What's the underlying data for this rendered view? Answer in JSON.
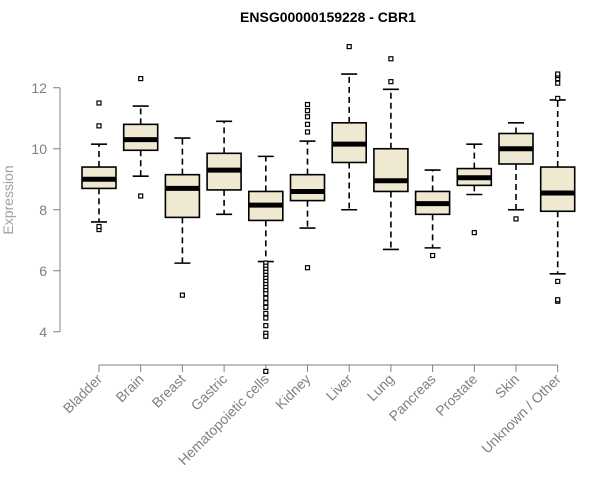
{
  "chart_data": {
    "type": "boxplot",
    "title": "ENSG00000159228 - CBR1",
    "xlabel": "",
    "ylabel": "Expression",
    "ylim": [
      3.5,
      13.5
    ],
    "yticks": [
      4,
      6,
      8,
      10,
      12
    ],
    "grid": false,
    "legend": "none",
    "box_fill": "#efe9d2",
    "box_stroke": "#000000",
    "axis_color": "#808080",
    "categories": [
      "Bladder",
      "Brain",
      "Breast",
      "Gastric",
      "Hematopoietic cells",
      "Kidney",
      "Liver",
      "Lung",
      "Pancreas",
      "Prostate",
      "Skin",
      "Unknown / Other"
    ],
    "boxes": [
      {
        "category": "Bladder",
        "whisker_low": 7.6,
        "q1": 8.7,
        "median": 9.0,
        "q3": 9.4,
        "whisker_high": 10.15,
        "outliers": [
          7.35,
          7.45,
          10.75,
          11.5
        ]
      },
      {
        "category": "Brain",
        "whisker_low": 9.1,
        "q1": 9.95,
        "median": 10.3,
        "q3": 10.8,
        "whisker_high": 11.4,
        "outliers": [
          8.45,
          12.3
        ]
      },
      {
        "category": "Breast",
        "whisker_low": 6.25,
        "q1": 7.75,
        "median": 8.7,
        "q3": 9.15,
        "whisker_high": 10.35,
        "outliers": [
          5.2
        ]
      },
      {
        "category": "Gastric",
        "whisker_low": 7.85,
        "q1": 8.65,
        "median": 9.3,
        "q3": 9.85,
        "whisker_high": 10.9,
        "outliers": []
      },
      {
        "category": "Hematopoietic cells",
        "whisker_low": 6.3,
        "q1": 7.65,
        "median": 8.15,
        "q3": 8.6,
        "whisker_high": 9.75,
        "outliers": [
          6.25,
          6.15,
          6.05,
          5.95,
          5.85,
          5.75,
          5.65,
          5.55,
          5.45,
          5.35,
          5.25,
          5.1,
          4.95,
          4.8,
          4.6,
          4.45,
          4.2,
          3.95,
          3.85,
          2.7
        ]
      },
      {
        "category": "Kidney",
        "whisker_low": 7.4,
        "q1": 8.3,
        "median": 8.6,
        "q3": 9.15,
        "whisker_high": 10.25,
        "outliers": [
          6.1,
          10.55,
          10.8,
          11.05,
          11.25,
          11.45
        ]
      },
      {
        "category": "Liver",
        "whisker_low": 8.0,
        "q1": 9.55,
        "median": 10.15,
        "q3": 10.85,
        "whisker_high": 12.45,
        "outliers": [
          13.35
        ]
      },
      {
        "category": "Lung",
        "whisker_low": 6.7,
        "q1": 8.6,
        "median": 8.95,
        "q3": 10.0,
        "whisker_high": 11.95,
        "outliers": [
          12.2,
          12.95
        ]
      },
      {
        "category": "Pancreas",
        "whisker_low": 6.75,
        "q1": 7.85,
        "median": 8.2,
        "q3": 8.6,
        "whisker_high": 9.3,
        "outliers": [
          6.5
        ]
      },
      {
        "category": "Prostate",
        "whisker_low": 8.5,
        "q1": 8.8,
        "median": 9.05,
        "q3": 9.35,
        "whisker_high": 10.15,
        "outliers": [
          7.25
        ]
      },
      {
        "category": "Skin",
        "whisker_low": 8.0,
        "q1": 9.5,
        "median": 10.0,
        "q3": 10.5,
        "whisker_high": 10.85,
        "outliers": [
          7.7
        ]
      },
      {
        "category": "Unknown / Other",
        "whisker_low": 5.9,
        "q1": 7.95,
        "median": 8.55,
        "q3": 9.4,
        "whisker_high": 11.6,
        "outliers": [
          5.0,
          5.05,
          5.65,
          11.65,
          12.15,
          12.3,
          12.4,
          12.45
        ]
      }
    ]
  }
}
